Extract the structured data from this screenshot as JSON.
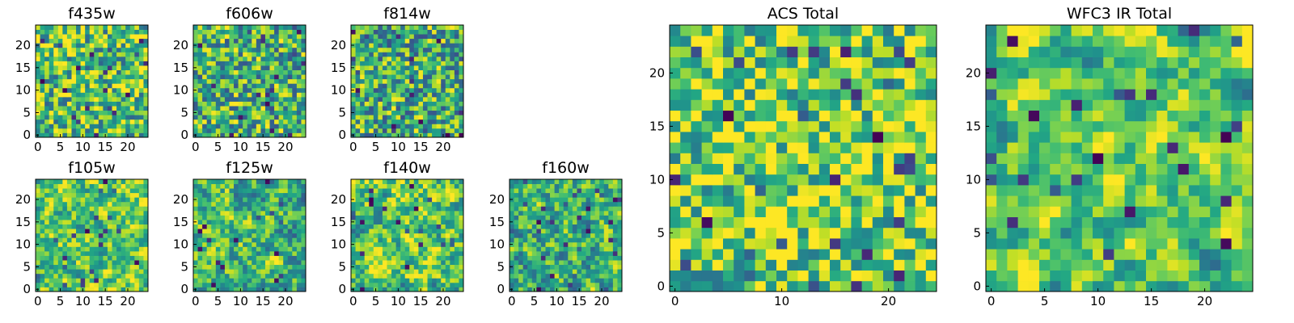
{
  "chart_data": [
    {
      "type": "heatmap",
      "title": "f435w",
      "x_ticks": [
        "0",
        "5",
        "10",
        "15",
        "20"
      ],
      "y_ticks": [
        "0",
        "5",
        "10",
        "15",
        "20"
      ],
      "xlim": [
        0,
        24
      ],
      "ylim": [
        0,
        24
      ],
      "grid": false,
      "colormap": "viridis",
      "grid_size": 25,
      "seed": 11,
      "smooth": 0.0,
      "bias": 0.08
    },
    {
      "type": "heatmap",
      "title": "f606w",
      "x_ticks": [
        "0",
        "5",
        "10",
        "15",
        "20"
      ],
      "y_ticks": [
        "0",
        "5",
        "10",
        "15",
        "20"
      ],
      "xlim": [
        0,
        24
      ],
      "ylim": [
        0,
        24
      ],
      "grid": false,
      "colormap": "viridis",
      "grid_size": 25,
      "seed": 23,
      "smooth": 0.0,
      "bias": 0.02
    },
    {
      "type": "heatmap",
      "title": "f814w",
      "x_ticks": [
        "0",
        "5",
        "10",
        "15",
        "20"
      ],
      "y_ticks": [
        "0",
        "5",
        "10",
        "15",
        "20"
      ],
      "xlim": [
        0,
        24
      ],
      "ylim": [
        0,
        24
      ],
      "grid": false,
      "colormap": "viridis",
      "grid_size": 25,
      "seed": 37,
      "smooth": 0.0,
      "bias": 0.0
    },
    {
      "type": "heatmap",
      "title": "f105w",
      "x_ticks": [
        "0",
        "5",
        "10",
        "15",
        "20"
      ],
      "y_ticks": [
        "0",
        "5",
        "10",
        "15",
        "20"
      ],
      "xlim": [
        0,
        24
      ],
      "ylim": [
        0,
        24
      ],
      "grid": false,
      "colormap": "viridis",
      "grid_size": 25,
      "seed": 41,
      "smooth": 0.55,
      "bias": 0.12
    },
    {
      "type": "heatmap",
      "title": "f125w",
      "x_ticks": [
        "0",
        "5",
        "10",
        "15",
        "20"
      ],
      "y_ticks": [
        "0",
        "5",
        "10",
        "15",
        "20"
      ],
      "xlim": [
        0,
        24
      ],
      "ylim": [
        0,
        24
      ],
      "grid": false,
      "colormap": "viridis",
      "grid_size": 25,
      "seed": 53,
      "smooth": 0.5,
      "bias": 0.05
    },
    {
      "type": "heatmap",
      "title": "f140w",
      "x_ticks": [
        "0",
        "5",
        "10",
        "15",
        "20"
      ],
      "y_ticks": [
        "0",
        "5",
        "10",
        "15",
        "20"
      ],
      "xlim": [
        0,
        24
      ],
      "ylim": [
        0,
        24
      ],
      "grid": false,
      "colormap": "viridis",
      "grid_size": 25,
      "seed": 67,
      "smooth": 0.6,
      "bias": 0.1
    },
    {
      "type": "heatmap",
      "title": "f160w",
      "x_ticks": [
        "0",
        "5",
        "10",
        "15",
        "20"
      ],
      "y_ticks": [
        "0",
        "5",
        "10",
        "15",
        "20"
      ],
      "xlim": [
        0,
        24
      ],
      "ylim": [
        0,
        24
      ],
      "grid": false,
      "colormap": "viridis",
      "grid_size": 25,
      "seed": 79,
      "smooth": 0.45,
      "bias": 0.0
    },
    {
      "type": "heatmap",
      "title": "ACS Total",
      "x_ticks": [
        "0",
        "10",
        "20"
      ],
      "y_ticks": [
        "0",
        "5",
        "10",
        "15",
        "20"
      ],
      "xlim": [
        0,
        24
      ],
      "ylim": [
        0,
        24
      ],
      "grid": false,
      "colormap": "viridis",
      "grid_size": 25,
      "seed": 97,
      "smooth": 0.15,
      "bias": 0.14
    },
    {
      "type": "heatmap",
      "title": "WFC3 IR Total",
      "x_ticks": [
        "0",
        "5",
        "10",
        "15",
        "20"
      ],
      "y_ticks": [
        "0",
        "5",
        "10",
        "15",
        "20"
      ],
      "xlim": [
        0,
        24
      ],
      "ylim": [
        0,
        24
      ],
      "grid": false,
      "colormap": "viridis",
      "grid_size": 25,
      "seed": 113,
      "smooth": 0.7,
      "bias": 0.08
    }
  ]
}
